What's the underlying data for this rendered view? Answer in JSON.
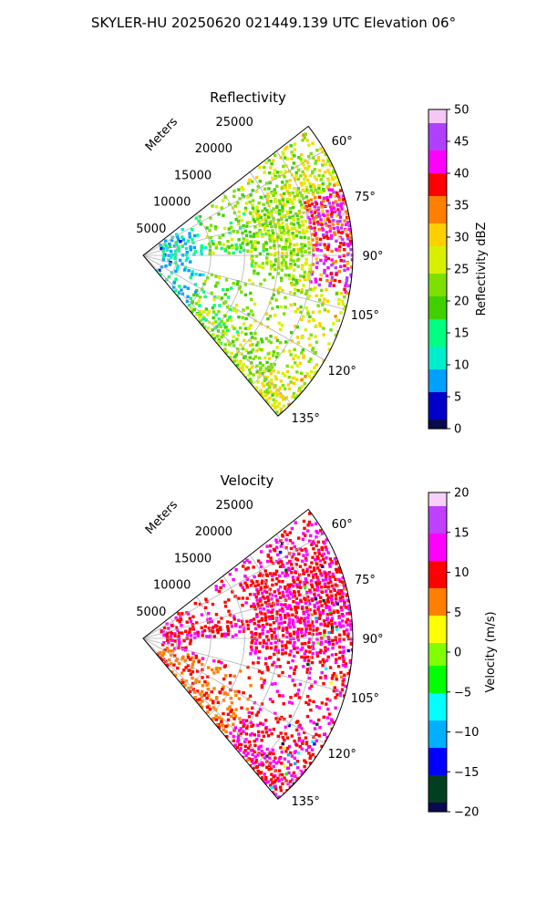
{
  "figure": {
    "suptitle": "SKYLER-HU  20250620  021449.139 UTC Elevation 06°"
  },
  "chart_data": [
    {
      "type": "heatmap",
      "title": "Reflectivity",
      "radial_axis_label": "Meters",
      "radial_ticks": [
        "5000",
        "10000",
        "15000",
        "20000",
        "25000"
      ],
      "radial_range": [
        0,
        31000
      ],
      "angle_ticks": [
        "60°",
        "75°",
        "90°",
        "105°",
        "120°",
        "135°"
      ],
      "angle_range": [
        52,
        140
      ],
      "grid": true,
      "colorbar": {
        "label": "Reflectivity dBZ",
        "range": [
          0,
          50
        ],
        "ticks": [
          "0",
          "5",
          "10",
          "15",
          "20",
          "25",
          "30",
          "35",
          "40",
          "45",
          "50"
        ]
      },
      "colors": [
        "#0a0a50",
        "#0000c8",
        "#00a0ff",
        "#00eecc",
        "#00ff80",
        "#40d000",
        "#7ee000",
        "#d8f000",
        "#ffd000",
        "#ff8000",
        "#ff0000",
        "#ff00ff",
        "#b040ff",
        "#f4c8f4"
      ]
    },
    {
      "type": "heatmap",
      "title": "Velocity",
      "radial_axis_label": "Meters",
      "radial_ticks": [
        "5000",
        "10000",
        "15000",
        "20000",
        "25000"
      ],
      "radial_range": [
        0,
        31000
      ],
      "angle_ticks": [
        "60°",
        "75°",
        "90°",
        "105°",
        "120°",
        "135°"
      ],
      "angle_range": [
        52,
        140
      ],
      "grid": true,
      "colorbar": {
        "label": "Velocity (m/s)",
        "range": [
          -20,
          20
        ],
        "ticks": [
          "−20",
          "−15",
          "−10",
          "−5",
          "0",
          "5",
          "10",
          "15",
          "20"
        ]
      },
      "colors": [
        "#0a0a50",
        "#004020",
        "#0000ff",
        "#00b0ff",
        "#00ffff",
        "#00ff00",
        "#80ff00",
        "#ffff00",
        "#ff8000",
        "#ff0000",
        "#ff00ff",
        "#c040ff",
        "#f8d0f8"
      ]
    }
  ]
}
